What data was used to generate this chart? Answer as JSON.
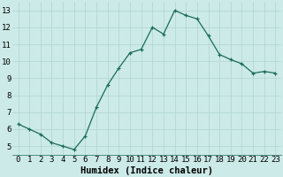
{
  "x": [
    0,
    1,
    2,
    3,
    4,
    5,
    6,
    7,
    8,
    9,
    10,
    11,
    12,
    13,
    14,
    15,
    16,
    17,
    18,
    19,
    20,
    21,
    22,
    23
  ],
  "y": [
    6.3,
    6.0,
    5.7,
    5.2,
    5.0,
    4.8,
    5.6,
    7.3,
    8.6,
    9.6,
    10.5,
    10.7,
    12.0,
    11.6,
    13.0,
    12.7,
    12.5,
    11.5,
    10.4,
    10.1,
    9.85,
    9.3,
    9.4,
    9.3
  ],
  "xlabel": "Humidex (Indice chaleur)",
  "ylim": [
    4.5,
    13.5
  ],
  "xlim": [
    -0.5,
    23.5
  ],
  "yticks": [
    5,
    6,
    7,
    8,
    9,
    10,
    11,
    12,
    13
  ],
  "xticks": [
    0,
    1,
    2,
    3,
    4,
    5,
    6,
    7,
    8,
    9,
    10,
    11,
    12,
    13,
    14,
    15,
    16,
    17,
    18,
    19,
    20,
    21,
    22,
    23
  ],
  "line_color": "#1a6b5e",
  "marker": "+",
  "markersize": 3.5,
  "linewidth": 0.9,
  "bg_color": "#cceae7",
  "grid_color": "#b0d5d2",
  "xlabel_fontsize": 7.5,
  "tick_fontsize": 6.5
}
